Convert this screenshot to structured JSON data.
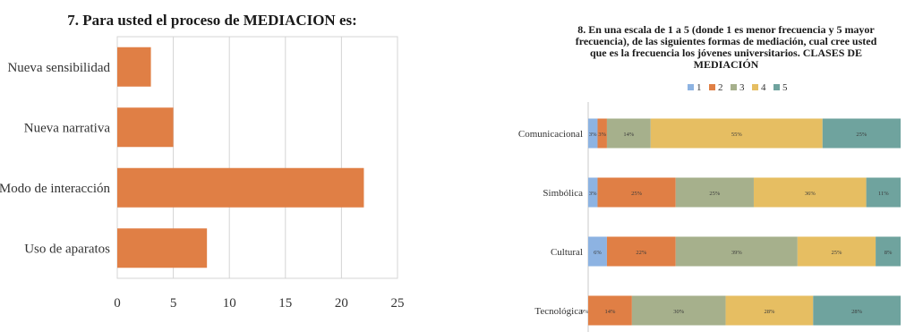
{
  "chart_data": [
    {
      "type": "bar",
      "orientation": "horizontal",
      "title": "7. Para usted el proceso de MEDIACION es:",
      "categories": [
        "Nueva sensibilidad",
        "Nueva narrativa",
        "Modo de interacción",
        "Uso de aparatos"
      ],
      "values": [
        3,
        5,
        22,
        8
      ],
      "xlim": [
        0,
        25
      ],
      "xticks": [
        "0",
        "5",
        "10",
        "15",
        "20",
        "25"
      ],
      "grid": true,
      "color": "#E07F45"
    },
    {
      "type": "bar",
      "orientation": "horizontal",
      "stacked": true,
      "title_lines": [
        "8. En una escala de 1 a 5 (donde 1 es menor frecuencia y 5 mayor",
        "frecuencia), de las siguientes formas de mediación, cual cree usted",
        "que es la frecuencia los jóvenes universitarios. CLASES DE",
        "MEDIACIÓN"
      ],
      "legend_position": "top",
      "categories": [
        "Comunicacional",
        "Simbólica",
        "Cultural",
        "Tecnológica"
      ],
      "series": [
        {
          "name": "1",
          "color": "#8DB3E2",
          "values": [
            3,
            3,
            6,
            0
          ],
          "labels": [
            "3%",
            "3%",
            "6%",
            "0%"
          ]
        },
        {
          "name": "2",
          "color": "#E07F45",
          "values": [
            3,
            25,
            22,
            14
          ],
          "labels": [
            "3%",
            "25%",
            "22%",
            "14%"
          ]
        },
        {
          "name": "3",
          "color": "#A6B08C",
          "values": [
            14,
            25,
            39,
            30
          ],
          "labels": [
            "14%",
            "25%",
            "39%",
            "30%"
          ]
        },
        {
          "name": "4",
          "color": "#E6BE62",
          "values": [
            55,
            36,
            25,
            28
          ],
          "labels": [
            "55%",
            "36%",
            "25%",
            "28%"
          ]
        },
        {
          "name": "5",
          "color": "#6FA39E",
          "values": [
            25,
            11,
            8,
            28
          ],
          "labels": [
            "25%",
            "11%",
            "8%",
            "28%"
          ]
        }
      ],
      "xlim": [
        0,
        100
      ]
    }
  ]
}
